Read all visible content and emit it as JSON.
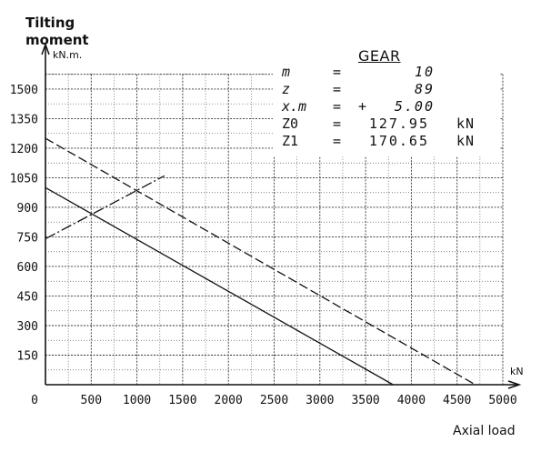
{
  "title": {
    "line1": "Tilting",
    "line2": "moment"
  },
  "y_unit": "kN.m.",
  "x_unit": "kN",
  "x_axis_label": "Axial load",
  "gear": {
    "title": "GEAR",
    "rows": [
      {
        "key": "m",
        "eq": "=",
        "sign": "",
        "value": "10",
        "unit": ""
      },
      {
        "key": "z",
        "eq": "=",
        "sign": "",
        "value": "89",
        "unit": ""
      },
      {
        "key": "x.m",
        "eq": "=",
        "sign": "+",
        "value": "5.00",
        "unit": ""
      },
      {
        "key": "Z0",
        "eq": "=",
        "sign": "",
        "value": "127.95",
        "unit": "kN"
      },
      {
        "key": "Z1",
        "eq": "=",
        "sign": "",
        "value": "170.65",
        "unit": "kN"
      }
    ]
  },
  "chart_data": {
    "type": "line",
    "xlabel": "Axial load",
    "ylabel": "Tilting moment",
    "xlim": [
      0,
      5000
    ],
    "ylim": [
      0,
      1600
    ],
    "x_ticks": [
      0,
      500,
      1000,
      1500,
      2000,
      2500,
      3000,
      3500,
      4000,
      4500,
      5000
    ],
    "x_tick_labels": [
      "0",
      "500",
      "1000",
      "1500",
      "2000",
      "2500",
      "3000",
      "3500",
      "4000",
      "4500",
      "5000"
    ],
    "y_ticks": [
      150,
      300,
      450,
      600,
      750,
      900,
      1050,
      1200,
      1350,
      1500
    ],
    "y_tick_labels": [
      "150",
      "300",
      "450",
      "600",
      "750",
      "900",
      "1050",
      "1200",
      "1350",
      "1500"
    ],
    "grid": true,
    "series": [
      {
        "style": "solid",
        "color": "#111111",
        "x": [
          0,
          3800
        ],
        "y": [
          1000,
          0
        ]
      },
      {
        "style": "dashed",
        "color": "#111111",
        "x": [
          0,
          4700
        ],
        "y": [
          1250,
          0
        ]
      },
      {
        "style": "dash-dot",
        "color": "#111111",
        "x": [
          0,
          1300
        ],
        "y": [
          740,
          1060
        ]
      }
    ]
  }
}
